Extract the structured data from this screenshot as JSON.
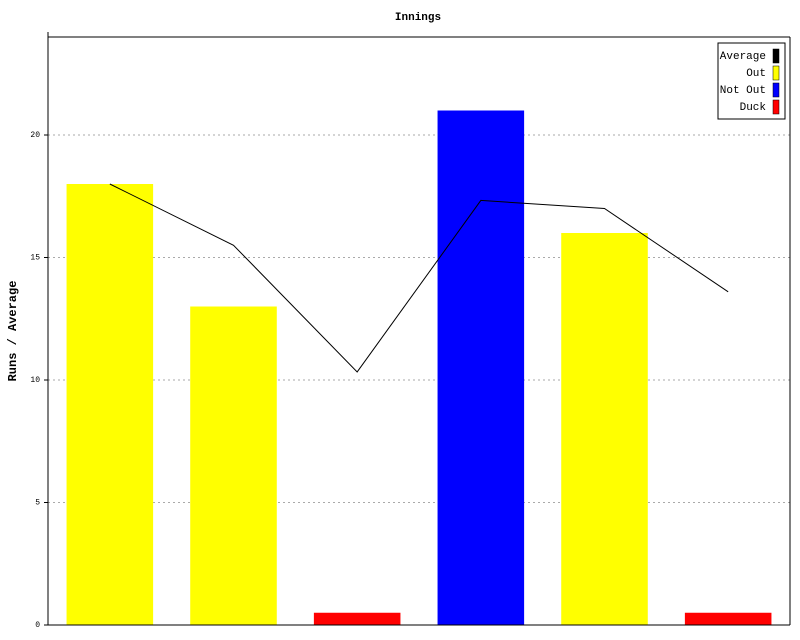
{
  "chart_data": {
    "type": "bar",
    "title": "Innings",
    "y_label": "Runs / Average",
    "categories": [
      null,
      null,
      null,
      null,
      null,
      null
    ],
    "ylim": [
      0,
      24
    ],
    "yticks": [
      0,
      5,
      10,
      15,
      20
    ],
    "grid": true,
    "legend": "top-right",
    "series": [
      {
        "name": "Average",
        "color": "#000000",
        "type": "line",
        "values": [
          18,
          15.5,
          10.33,
          17.33,
          17,
          13.6
        ]
      },
      {
        "name": "Out",
        "color": "#ffff00",
        "type": "bar",
        "values": [
          18,
          13,
          null,
          null,
          16,
          null
        ]
      },
      {
        "name": "Not Out",
        "color": "#0000ff",
        "type": "bar",
        "values": [
          null,
          null,
          null,
          21,
          null,
          null
        ]
      },
      {
        "name": "Duck",
        "color": "#ff0000",
        "type": "bar",
        "values": [
          null,
          null,
          0.5,
          null,
          null,
          0.5
        ]
      }
    ]
  }
}
